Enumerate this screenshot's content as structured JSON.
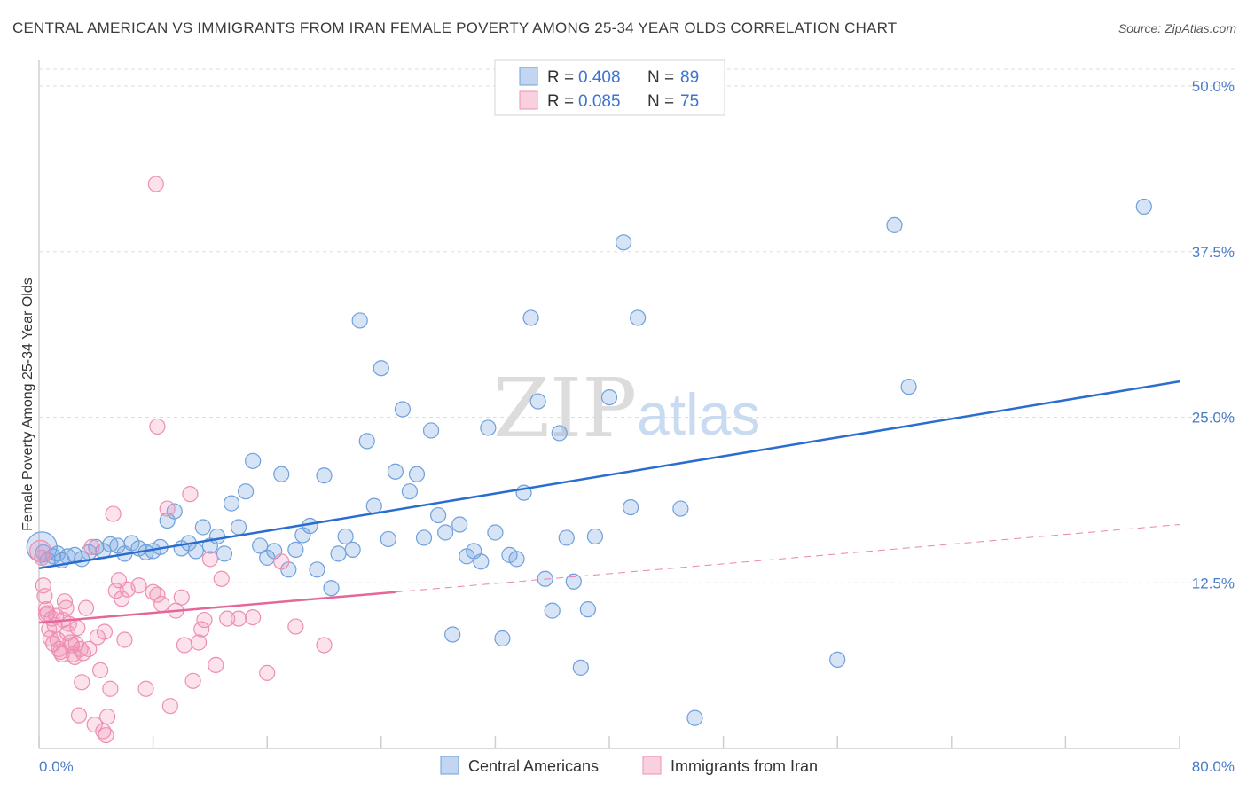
{
  "title": "CENTRAL AMERICAN VS IMMIGRANTS FROM IRAN FEMALE POVERTY AMONG 25-34 YEAR OLDS CORRELATION CHART",
  "source": "Source: ZipAtlas.com",
  "watermark": {
    "zip": "ZIP",
    "atlas": "atlas"
  },
  "colors": {
    "blue": "#6fa0dc",
    "blue_fill": "rgba(120,165,225,0.30)",
    "blue_line": "#2a6dd0",
    "pink": "#ee8fb0",
    "pink_fill": "rgba(240,150,185,0.28)",
    "pink_line": "#e4679a",
    "tick_label": "#4a7cc9",
    "grid": "#dddddd"
  },
  "legend": {
    "rows": [
      {
        "r_label": "R = ",
        "r_value": "0.408",
        "n_label": "N = ",
        "n_value": "89",
        "color": "blue"
      },
      {
        "r_label": "R = ",
        "r_value": "0.085",
        "n_label": "N = ",
        "n_value": "75",
        "color": "pink"
      }
    ]
  },
  "bottom_legend": [
    {
      "label": "Central Americans",
      "color": "blue"
    },
    {
      "label": "Immigrants from Iran",
      "color": "pink"
    }
  ],
  "chart_data": {
    "type": "scatter",
    "title": "CENTRAL AMERICAN VS IMMIGRANTS FROM IRAN FEMALE POVERTY AMONG 25-34 YEAR OLDS CORRELATION CHART",
    "xlabel": "",
    "ylabel": "Female Poverty Among 25-34 Year Olds",
    "xlim": [
      0,
      80
    ],
    "ylim": [
      0,
      50
    ],
    "x_tick_labels": [
      "0.0%",
      "80.0%"
    ],
    "y_ticks": [
      12.5,
      25.0,
      37.5,
      50.0
    ],
    "y_tick_labels": [
      "12.5%",
      "25.0%",
      "37.5%",
      "50.0%"
    ],
    "grid": "horizontal dashed",
    "legend_position": "top-center",
    "series": [
      {
        "name": "Central Americans",
        "color": "blue",
        "R": 0.408,
        "N": 89,
        "trend": {
          "x": [
            0,
            80
          ],
          "y": [
            13.6,
            27.7
          ],
          "style": "solid"
        },
        "points": [
          [
            0.3,
            14.8
          ],
          [
            0.6,
            14.2
          ],
          [
            1.0,
            14.5
          ],
          [
            1.3,
            14.7
          ],
          [
            1.6,
            14.2
          ],
          [
            2.0,
            14.5
          ],
          [
            2.5,
            14.6
          ],
          [
            3.0,
            14.3
          ],
          [
            3.5,
            14.8
          ],
          [
            4.0,
            15.2
          ],
          [
            4.5,
            14.9
          ],
          [
            5.0,
            15.4
          ],
          [
            5.5,
            15.3
          ],
          [
            6.0,
            14.7
          ],
          [
            6.5,
            15.5
          ],
          [
            7.0,
            15.1
          ],
          [
            7.5,
            14.8
          ],
          [
            8.0,
            14.9
          ],
          [
            8.5,
            15.2
          ],
          [
            9.0,
            17.2
          ],
          [
            9.5,
            17.9
          ],
          [
            10.0,
            15.1
          ],
          [
            10.5,
            15.5
          ],
          [
            11.0,
            14.9
          ],
          [
            11.5,
            16.7
          ],
          [
            12.0,
            15.3
          ],
          [
            12.5,
            16.0
          ],
          [
            13.0,
            14.7
          ],
          [
            13.5,
            18.5
          ],
          [
            14.0,
            16.7
          ],
          [
            14.5,
            19.4
          ],
          [
            15.0,
            21.7
          ],
          [
            15.5,
            15.3
          ],
          [
            16.0,
            14.4
          ],
          [
            16.5,
            14.9
          ],
          [
            17.0,
            20.7
          ],
          [
            17.5,
            13.5
          ],
          [
            18.0,
            15.0
          ],
          [
            18.5,
            16.1
          ],
          [
            19.0,
            16.8
          ],
          [
            19.5,
            13.5
          ],
          [
            20.0,
            20.6
          ],
          [
            20.5,
            12.1
          ],
          [
            21.0,
            14.7
          ],
          [
            21.5,
            16.0
          ],
          [
            22.0,
            15.0
          ],
          [
            22.5,
            32.3
          ],
          [
            23.0,
            23.2
          ],
          [
            23.5,
            18.3
          ],
          [
            24.0,
            28.7
          ],
          [
            24.5,
            15.8
          ],
          [
            25.0,
            20.9
          ],
          [
            25.5,
            25.6
          ],
          [
            26.0,
            19.4
          ],
          [
            26.5,
            20.7
          ],
          [
            27.0,
            15.9
          ],
          [
            27.5,
            24.0
          ],
          [
            28.0,
            17.6
          ],
          [
            28.5,
            16.3
          ],
          [
            29.0,
            8.6
          ],
          [
            29.5,
            16.9
          ],
          [
            30.0,
            14.5
          ],
          [
            30.5,
            14.9
          ],
          [
            31.0,
            14.1
          ],
          [
            31.5,
            24.2
          ],
          [
            32.0,
            16.3
          ],
          [
            32.5,
            8.3
          ],
          [
            33.0,
            14.6
          ],
          [
            33.5,
            14.3
          ],
          [
            34.0,
            19.3
          ],
          [
            34.5,
            32.5
          ],
          [
            35.0,
            26.2
          ],
          [
            35.5,
            12.8
          ],
          [
            36.0,
            10.4
          ],
          [
            36.5,
            23.8
          ],
          [
            37.0,
            15.9
          ],
          [
            37.5,
            12.6
          ],
          [
            38.0,
            6.1
          ],
          [
            38.5,
            10.5
          ],
          [
            39.0,
            16.0
          ],
          [
            40.0,
            26.5
          ],
          [
            41.0,
            38.2
          ],
          [
            41.5,
            18.2
          ],
          [
            42.0,
            32.5
          ],
          [
            45.0,
            18.1
          ],
          [
            46.0,
            2.3
          ],
          [
            56.0,
            6.7
          ],
          [
            60.0,
            39.5
          ],
          [
            61.0,
            27.3
          ]
        ]
      },
      {
        "name": "Immigrants from Iran",
        "color": "pink",
        "R": 0.085,
        "N": 75,
        "trend": {
          "x": [
            0,
            25
          ],
          "y": [
            9.5,
            11.8
          ],
          "style": "solid"
        },
        "trend_dashed": {
          "x": [
            25,
            80
          ],
          "y": [
            11.8,
            16.9
          ],
          "style": "dashed"
        },
        "points": [
          [
            0.2,
            14.4
          ],
          [
            0.3,
            12.3
          ],
          [
            0.4,
            11.5
          ],
          [
            0.5,
            10.5
          ],
          [
            0.6,
            10.2
          ],
          [
            0.7,
            9.0
          ],
          [
            0.8,
            8.3
          ],
          [
            0.9,
            9.8
          ],
          [
            1.0,
            7.9
          ],
          [
            1.1,
            9.3
          ],
          [
            1.2,
            10.0
          ],
          [
            1.3,
            8.2
          ],
          [
            1.4,
            7.5
          ],
          [
            1.5,
            7.3
          ],
          [
            1.6,
            7.1
          ],
          [
            1.7,
            9.7
          ],
          [
            1.8,
            11.1
          ],
          [
            1.9,
            10.6
          ],
          [
            2.0,
            8.7
          ],
          [
            2.1,
            9.4
          ],
          [
            2.2,
            8.0
          ],
          [
            2.3,
            7.8
          ],
          [
            2.4,
            7.1
          ],
          [
            2.5,
            6.9
          ],
          [
            2.6,
            7.9
          ],
          [
            2.7,
            9.1
          ],
          [
            2.8,
            2.5
          ],
          [
            2.9,
            7.5
          ],
          [
            3.0,
            5.0
          ],
          [
            3.1,
            7.2
          ],
          [
            3.3,
            10.6
          ],
          [
            3.5,
            7.5
          ],
          [
            3.7,
            15.2
          ],
          [
            3.9,
            1.8
          ],
          [
            4.1,
            8.4
          ],
          [
            4.3,
            5.9
          ],
          [
            4.5,
            1.3
          ],
          [
            4.6,
            8.8
          ],
          [
            4.7,
            1.0
          ],
          [
            4.8,
            2.4
          ],
          [
            5.0,
            4.5
          ],
          [
            5.2,
            17.7
          ],
          [
            5.4,
            11.9
          ],
          [
            5.6,
            12.7
          ],
          [
            5.8,
            11.3
          ],
          [
            6.0,
            8.2
          ],
          [
            6.2,
            12.0
          ],
          [
            7.0,
            12.3
          ],
          [
            7.5,
            4.5
          ],
          [
            8.0,
            11.8
          ],
          [
            8.3,
            11.6
          ],
          [
            8.6,
            10.9
          ],
          [
            9.0,
            18.1
          ],
          [
            8.2,
            42.6
          ],
          [
            8.3,
            24.3
          ],
          [
            9.2,
            3.2
          ],
          [
            9.6,
            10.4
          ],
          [
            10.0,
            11.4
          ],
          [
            10.2,
            7.8
          ],
          [
            10.6,
            19.2
          ],
          [
            10.8,
            5.1
          ],
          [
            11.2,
            8.0
          ],
          [
            11.6,
            9.7
          ],
          [
            12.0,
            14.3
          ],
          [
            12.4,
            6.3
          ],
          [
            12.8,
            12.8
          ],
          [
            13.2,
            9.8
          ],
          [
            14.0,
            9.8
          ],
          [
            15.0,
            9.9
          ],
          [
            16.0,
            5.7
          ],
          [
            17.0,
            14.1
          ],
          [
            18.0,
            9.2
          ],
          [
            20.0,
            7.8
          ],
          [
            11.4,
            9.0
          ],
          [
            0.5,
            10.1
          ]
        ]
      }
    ]
  }
}
